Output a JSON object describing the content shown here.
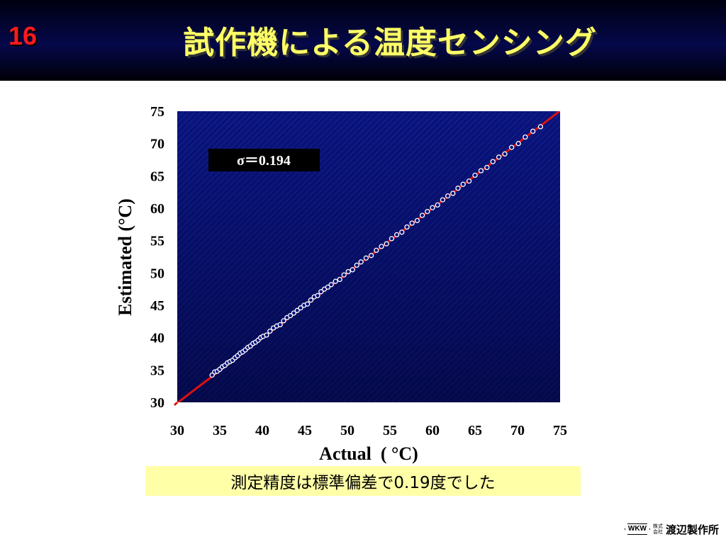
{
  "slide": {
    "number": "16",
    "title": "試作機による温度センシング",
    "caption": "測定精度は標準偏差で0.19度でした"
  },
  "logo": {
    "mark": "WKW",
    "kaisha_top": "株式",
    "kaisha_bottom": "会社",
    "company_name": "渡辺製作所"
  },
  "colors": {
    "header_bg": "#05084a",
    "title": "#ffff66",
    "slide_number": "#ff1a1a",
    "plot_bg": "#08127a",
    "fit_line": "#e01010",
    "points": "#ffffff",
    "sigma_box": "#000000",
    "caption_bg": "#ffffa8"
  },
  "chart_data": {
    "type": "scatter",
    "title": "",
    "xlabel": "Actual  ( °C)",
    "ylabel": "Estimated (°C)",
    "xlim": [
      30,
      75
    ],
    "ylim": [
      30,
      75
    ],
    "x_ticks": [
      30,
      35,
      40,
      45,
      50,
      55,
      60,
      65,
      70,
      75
    ],
    "y_ticks": [
      30,
      35,
      40,
      45,
      50,
      55,
      60,
      65,
      70,
      75
    ],
    "grid": false,
    "annotation": "σ＝0.194",
    "reference_line": {
      "x": [
        30,
        75
      ],
      "y": [
        30,
        75
      ]
    },
    "series": [
      {
        "x": [
          34.1,
          34.4,
          34.7,
          35.0,
          35.3,
          35.6,
          35.9,
          36.2,
          36.5,
          36.8,
          37.1,
          37.4,
          37.7,
          38.0,
          38.3,
          38.6,
          38.9,
          39.2,
          39.5,
          39.8,
          40.1,
          40.5,
          40.9,
          41.3,
          41.7,
          42.1,
          42.5,
          42.9,
          43.3,
          43.7,
          44.1,
          44.5,
          44.9,
          45.3,
          45.7,
          46.1,
          46.5,
          46.9,
          47.3,
          47.7,
          48.1,
          48.6,
          49.1,
          49.6,
          50.1,
          50.6,
          51.1,
          51.6,
          52.2,
          52.8,
          53.4,
          54.0,
          54.6,
          55.2,
          55.8,
          56.4,
          57.0,
          57.6,
          58.2,
          58.8,
          59.4,
          60.0,
          60.6,
          61.2,
          61.8,
          62.4,
          63.0,
          63.6,
          64.3,
          65.0,
          65.7,
          66.4,
          67.1,
          67.8,
          68.5,
          69.3,
          70.1,
          70.9,
          71.8,
          72.7
        ],
        "y": [
          34.2,
          34.7,
          34.8,
          35.1,
          35.5,
          35.7,
          36.1,
          36.3,
          36.5,
          36.9,
          37.2,
          37.6,
          37.8,
          38.1,
          38.5,
          38.7,
          39.1,
          39.3,
          39.6,
          40.0,
          40.2,
          40.4,
          41.0,
          41.5,
          41.8,
          42.0,
          42.6,
          43.1,
          43.4,
          43.8,
          44.2,
          44.6,
          45.0,
          45.2,
          45.8,
          46.3,
          46.5,
          47.1,
          47.5,
          47.8,
          48.2,
          48.7,
          49.0,
          49.7,
          50.2,
          50.5,
          51.2,
          51.7,
          52.3,
          52.7,
          53.5,
          54.1,
          54.5,
          55.3,
          55.9,
          56.3,
          57.1,
          57.7,
          58.1,
          58.9,
          59.5,
          60.1,
          60.5,
          61.3,
          61.9,
          62.3,
          63.1,
          63.7,
          64.2,
          65.1,
          65.8,
          66.3,
          67.2,
          67.9,
          68.4,
          69.4,
          70.0,
          71.0,
          71.9,
          72.6
        ]
      }
    ]
  }
}
